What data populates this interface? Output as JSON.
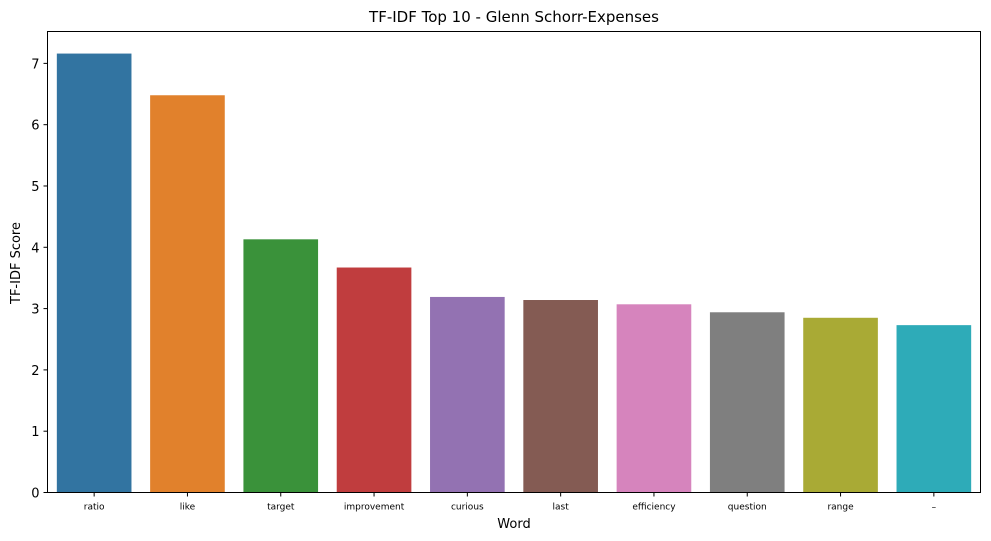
{
  "chart_data": {
    "type": "bar",
    "title": "TF-IDF Top 10 - Glenn Schorr-Expenses",
    "xlabel": "Word",
    "ylabel": "TF-IDF Score",
    "categories": [
      "ratio",
      "like",
      "target",
      "improvement",
      "curious",
      "last",
      "efficiency",
      "question",
      "range",
      "–"
    ],
    "values": [
      7.16,
      6.48,
      4.13,
      3.67,
      3.19,
      3.14,
      3.07,
      2.94,
      2.85,
      2.73
    ],
    "colors": [
      "#3274a1",
      "#e1812c",
      "#3a923a",
      "#c03d3e",
      "#9372b2",
      "#845b53",
      "#d684bd",
      "#7f7f7f",
      "#a9aa35",
      "#2eabb8"
    ],
    "ylim": [
      0,
      7.52
    ],
    "yticks": [
      0,
      1,
      2,
      3,
      4,
      5,
      6,
      7
    ],
    "grid": false,
    "legend": "none"
  }
}
